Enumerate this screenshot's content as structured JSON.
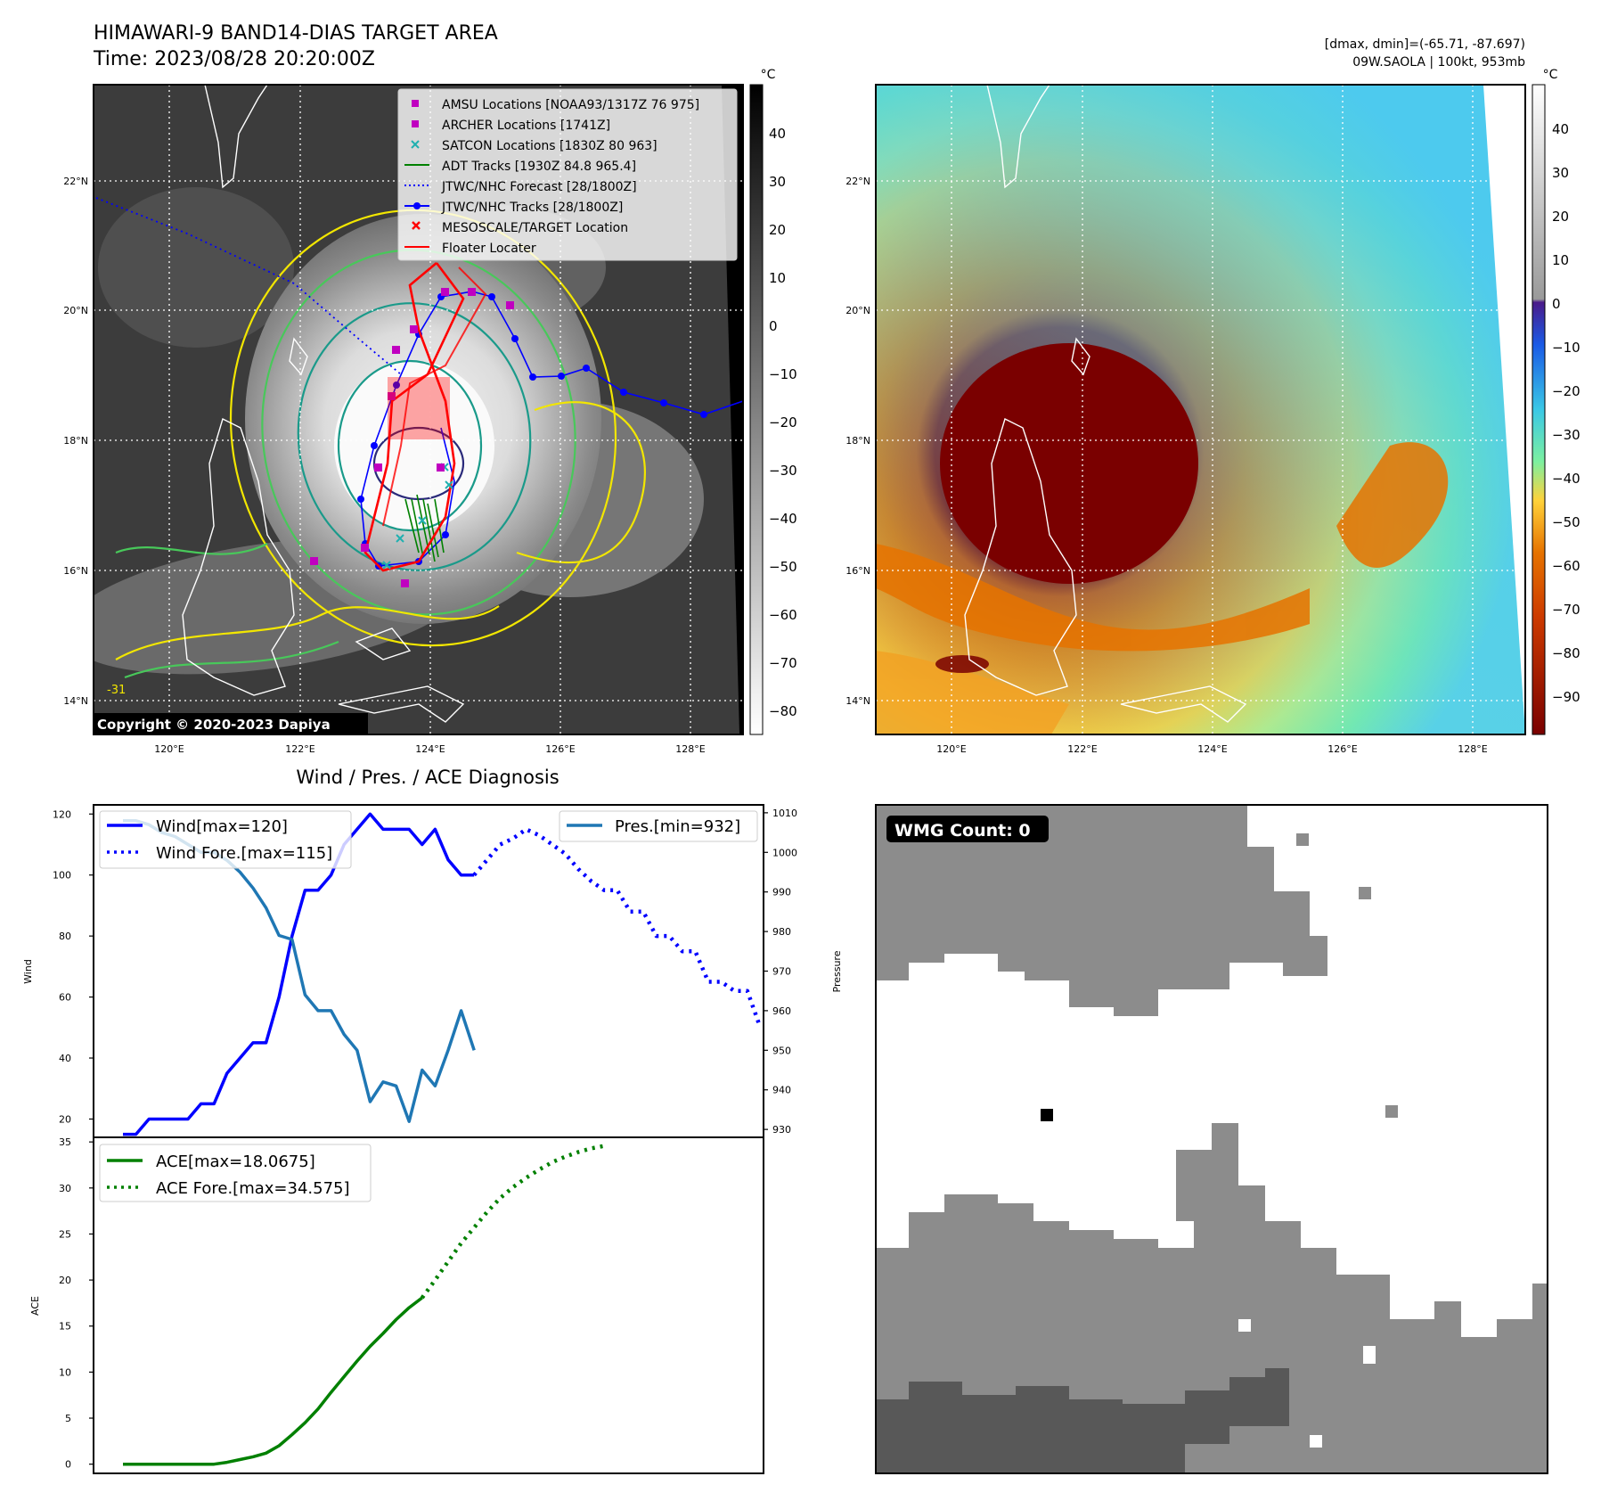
{
  "header": {
    "title": "HIMAWARI-9 BAND14-DIAS TARGET AREA",
    "time": "Time: 2023/08/28 20:20:00Z",
    "dmax_dmin": "[dmax, dmin]=(-65.71, -87.697)",
    "storm": "09W.SAOLA | 100kt, 953mb"
  },
  "maps": {
    "lat_labels": [
      "22°N",
      "20°N",
      "18°N",
      "16°N",
      "14°N"
    ],
    "lon_labels": [
      "120°E",
      "122°E",
      "124°E",
      "126°E",
      "128°E"
    ],
    "copyright": "Copyright © 2020-2023 Dapiya",
    "unit": "°C",
    "left_colorbar_ticks": [
      "40",
      "30",
      "20",
      "10",
      "0",
      "−10",
      "−20",
      "−30",
      "−40",
      "−50",
      "−60",
      "−70",
      "−80"
    ],
    "right_colorbar_ticks": [
      "40",
      "30",
      "20",
      "10",
      "0",
      "−10",
      "−20",
      "−30",
      "−40",
      "−50",
      "−60",
      "−70",
      "−80",
      "−90"
    ],
    "contour_label": "-31",
    "colors": {
      "wv_dark": "#7a0000",
      "wv_mid": "#e67300",
      "wv_yellow": "#ffd23a",
      "wv_green": "#7cf0a0",
      "wv_cyan": "#5ad2e6",
      "contour_yellow": "#f2e600",
      "contour_green": "#48c85a",
      "contour_teal": "#1a9a8a",
      "contour_navy": "#2a2a7a"
    }
  },
  "legend": [
    {
      "label": "AMSU Locations [NOAA93/1317Z 76 975]",
      "color": "#c000c0",
      "marker": "square"
    },
    {
      "label": "ARCHER Locations [1741Z]",
      "color": "#c000c0",
      "marker": "square"
    },
    {
      "label": "SATCON Locations [1830Z 80 963]",
      "color": "#20b0b0",
      "marker": "x"
    },
    {
      "label": "ADT Tracks [1930Z 84.8 965.4]",
      "color": "#008000",
      "marker": "line"
    },
    {
      "label": "JTWC/NHC Forecast [28/1800Z]",
      "color": "#0000ff",
      "marker": "dotted"
    },
    {
      "label": "JTWC/NHC Tracks [28/1800Z]",
      "color": "#0000ff",
      "marker": "line-dot"
    },
    {
      "label": "MESOSCALE/TARGET Location",
      "color": "#ff0000",
      "marker": "x"
    },
    {
      "label": "Floater Locater",
      "color": "#ff0000",
      "marker": "line"
    }
  ],
  "diagnosis": {
    "title": "Wind / Pres. / ACE Diagnosis",
    "wind_legend": "Wind[max=120]",
    "wind_fore_legend": "Wind Fore.[max=115]",
    "pres_legend": "Pres.[min=932]",
    "ace_legend": "ACE[max=18.0675]",
    "ace_fore_legend": "ACE Fore.[max=34.575]",
    "wind_ylabel": "Wind",
    "pres_ylabel": "Pressure",
    "ace_ylabel": "ACE"
  },
  "wmg": {
    "label": "WMG Count: 0"
  },
  "chart_data": [
    {
      "type": "line",
      "title": "Wind / Pres. / ACE Diagnosis",
      "ylabel": "Wind",
      "ylim": [
        14,
        123
      ],
      "yticks": [
        20,
        40,
        60,
        80,
        100,
        120
      ],
      "series": [
        {
          "name": "Wind[max=120]",
          "style": "solid",
          "color": "#0000ff",
          "axis": "left",
          "start_index": 0,
          "values": [
            15,
            15,
            20,
            20,
            20,
            20,
            25,
            25,
            35,
            40,
            45,
            45,
            60,
            80,
            95,
            95,
            100,
            110,
            115,
            120,
            115,
            115,
            115,
            110,
            115,
            105,
            100,
            100
          ]
        },
        {
          "name": "Wind Fore.[max=115]",
          "style": "dotted",
          "color": "#0000ff",
          "axis": "left",
          "start_index": 27,
          "values": [
            100,
            105,
            110,
            112,
            115,
            113,
            110,
            107,
            102,
            98,
            95,
            95,
            88,
            88,
            80,
            80,
            75,
            75,
            65,
            65,
            62,
            62,
            50
          ]
        }
      ]
    },
    {
      "type": "line",
      "ylabel": "Pressure",
      "ylim": [
        928,
        1012
      ],
      "yticks": [
        930,
        940,
        950,
        960,
        970,
        980,
        990,
        1000,
        1010
      ],
      "series": [
        {
          "name": "Pres.[min=932]",
          "style": "solid",
          "color": "#1f77b4",
          "axis": "right",
          "start_index": 0,
          "values": [
            1008,
            1008,
            1007,
            1005,
            1004,
            1002,
            1000,
            1000,
            998,
            995,
            991,
            986,
            979,
            978,
            964,
            960,
            960,
            954,
            950,
            937,
            942,
            941,
            932,
            945,
            941,
            950,
            960,
            950
          ]
        }
      ]
    },
    {
      "type": "line",
      "ylabel": "ACE",
      "ylim": [
        -1,
        35.5
      ],
      "yticks": [
        0,
        5,
        10,
        15,
        20,
        25,
        30,
        35
      ],
      "series": [
        {
          "name": "ACE[max=18.0675]",
          "style": "solid",
          "color": "#008000",
          "start_index": 0,
          "values": [
            0,
            0,
            0,
            0,
            0,
            0,
            0,
            0,
            0.2,
            0.5,
            0.8,
            1.2,
            2,
            3.2,
            4.5,
            6,
            7.8,
            9.5,
            11.2,
            12.8,
            14.2,
            15.7,
            17,
            18.07
          ]
        },
        {
          "name": "ACE Fore.[max=34.575]",
          "style": "dotted",
          "color": "#008000",
          "start_index": 23,
          "values": [
            18.07,
            20,
            22,
            24,
            25.7,
            27.4,
            28.9,
            30.1,
            31.1,
            32,
            32.8,
            33.4,
            33.9,
            34.3,
            34.575
          ]
        }
      ]
    }
  ]
}
